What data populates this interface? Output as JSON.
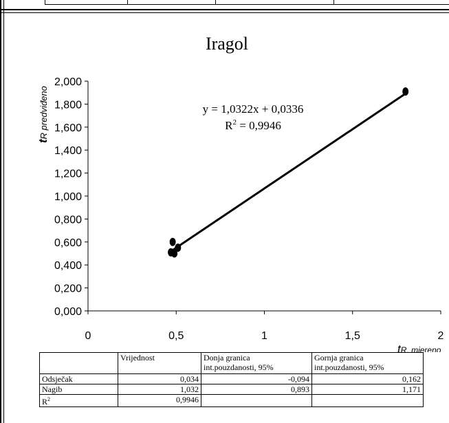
{
  "chart_data": {
    "type": "scatter",
    "title": "Iragol",
    "ylabel_main": "t",
    "ylabel_sub": "R predviđeno",
    "xlabel_main": "t",
    "xlabel_sub": "R, mjereno",
    "xlim": [
      0,
      2
    ],
    "ylim": [
      0,
      2.0
    ],
    "x_ticks": [
      0,
      0.5,
      1,
      1.5,
      2
    ],
    "x_tick_labels": [
      "0",
      "0,5",
      "1",
      "1,5",
      "2"
    ],
    "y_ticks": [
      0,
      0.2,
      0.4,
      0.6,
      0.8,
      1.0,
      1.2,
      1.4,
      1.6,
      1.8,
      2.0
    ],
    "y_tick_labels": [
      "0,000",
      "0,200",
      "0,400",
      "0,600",
      "0,800",
      "1,000",
      "1,200",
      "1,400",
      "1,600",
      "1,800",
      "2,000"
    ],
    "points": [
      {
        "x": 0.48,
        "y": 0.6
      },
      {
        "x": 0.47,
        "y": 0.51
      },
      {
        "x": 0.49,
        "y": 0.5
      },
      {
        "x": 0.51,
        "y": 0.55
      },
      {
        "x": 1.8,
        "y": 1.91
      }
    ],
    "trendline": {
      "slope": 1.0322,
      "intercept": 0.0336,
      "x_from": 0.47,
      "x_to": 1.8
    },
    "equation": "y = 1,0322x + 0,0336",
    "r2_label": "R",
    "r2_sup": "2",
    "r2_value": " = 0,9946"
  },
  "stats_table": {
    "headers": [
      "",
      "Vrijednost",
      "Donja granica int.pouzdanosti, 95%",
      "Gornja granica int.pouzdanosti, 95%"
    ],
    "header_lines": [
      [
        "",
        ""
      ],
      [
        "Vrijednost",
        ""
      ],
      [
        "Donja granica",
        "int.pouzdanosti, 95%"
      ],
      [
        "Gornja granica",
        "int.pouzdanosti, 95%"
      ]
    ],
    "rows": [
      {
        "label": "Odsječak",
        "values": [
          "0,034",
          "-0,094",
          "0,162"
        ]
      },
      {
        "label": "Nagib",
        "values": [
          "1,032",
          "0,893",
          "1,171"
        ]
      },
      {
        "label": "R",
        "label_sup": "2",
        "values": [
          "0,9946",
          "",
          ""
        ]
      }
    ]
  }
}
